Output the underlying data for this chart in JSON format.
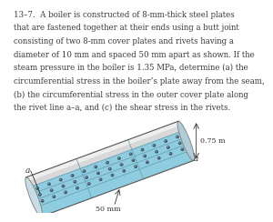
{
  "text_lines": [
    "13–7.  A boiler is constructed of 8-mm-thick steel plates",
    "that are fastened together at their ends using a butt joint",
    "consisting of two 8-mm cover plates and rivets having a",
    "diameter of 10 mm and spaced 50 mm apart as shown. If the",
    "steam pressure in the boiler is 1.35 MPa, determine (a) the",
    "circumferential stress in the boiler’s plate away from the seam,",
    "(b) the circumferential stress in the outer cover plate along",
    "the rivet line a–a, and (c) the shear stress in the rivets."
  ],
  "text_fontsize": 6.2,
  "text_color": "#3a3a3a",
  "bg_color": "#ffffff",
  "body_color": "#8ecde0",
  "body_dark": "#5fa8c0",
  "top_surf_color": "#d8d8d8",
  "top_surf_light": "#f0f0f0",
  "rivet_color": "#445566",
  "end_face_color": "#c0d8e0",
  "line_color": "#557788",
  "dim_075_label": "0.75 m",
  "dim_50_label": "50 mm"
}
